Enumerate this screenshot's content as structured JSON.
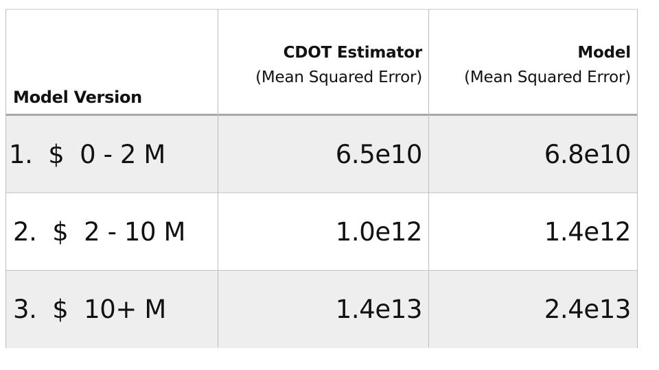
{
  "table": {
    "headers": {
      "model_version": "Model Version",
      "cdot_title": "CDOT Estimator",
      "cdot_sub": "(Mean Squared Error)",
      "model_title": "Model",
      "model_sub": "(Mean Squared Error)"
    },
    "rows": [
      {
        "version": "1.  $  0 - 2 M",
        "cdot": "6.5e10",
        "model": "6.8e10"
      },
      {
        "version": "2.  $  2 - 10 M",
        "cdot": "1.0e12",
        "model": "1.4e12"
      },
      {
        "version": "3.  $  10+ M",
        "cdot": "1.4e13",
        "model": "2.4e13"
      }
    ]
  }
}
